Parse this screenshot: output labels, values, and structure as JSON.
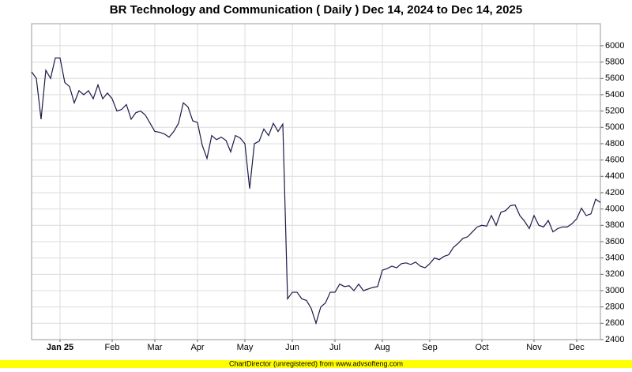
{
  "chart_data": {
    "type": "line",
    "title": "BR Technology and Communication ( Daily ) Dec 14, 2024 to Dec 14, 2025",
    "footer": "ChartDirector (unregistered) from www.advsofteng.com",
    "categories": [
      null,
      null,
      null,
      null,
      null,
      null,
      "Jan 25",
      null,
      null,
      null,
      null,
      null,
      null,
      null,
      null,
      null,
      null,
      "Feb",
      null,
      null,
      null,
      null,
      null,
      null,
      null,
      null,
      "Mar",
      null,
      null,
      null,
      null,
      null,
      null,
      null,
      null,
      "Apr",
      null,
      null,
      null,
      null,
      null,
      null,
      null,
      null,
      null,
      "May",
      null,
      null,
      null,
      null,
      null,
      null,
      null,
      null,
      null,
      "Jun",
      null,
      null,
      null,
      null,
      null,
      null,
      null,
      null,
      "Jul",
      null,
      null,
      null,
      null,
      null,
      null,
      null,
      null,
      null,
      "Aug",
      null,
      null,
      null,
      null,
      null,
      null,
      null,
      null,
      null,
      "Sep",
      null,
      null,
      null,
      null,
      null,
      null,
      null,
      null,
      null,
      null,
      "Oct",
      null,
      null,
      null,
      null,
      null,
      null,
      null,
      null,
      null,
      null,
      "Nov",
      null,
      null,
      null,
      null,
      null,
      null,
      null,
      null,
      "Dec",
      null,
      null,
      null,
      null,
      null
    ],
    "series": [
      {
        "color": "#1a1a4a",
        "values": [
          5680,
          5600,
          5100,
          5700,
          5600,
          5850,
          5850,
          5550,
          5500,
          5300,
          5450,
          5400,
          5450,
          5350,
          5520,
          5350,
          5420,
          5350,
          5200,
          5220,
          5280,
          5100,
          5180,
          5200,
          5150,
          5050,
          4950,
          4940,
          4920,
          4880,
          4950,
          5050,
          5300,
          5250,
          5080,
          5060,
          4780,
          4620,
          4900,
          4850,
          4880,
          4840,
          4700,
          4900,
          4870,
          4800,
          4250,
          4800,
          4830,
          4980,
          4900,
          5050,
          4950,
          5040,
          2900,
          2980,
          2980,
          2900,
          2880,
          2780,
          2600,
          2800,
          2850,
          2980,
          2980,
          3080,
          3050,
          3060,
          3000,
          3080,
          3000,
          3020,
          3040,
          3050,
          3250,
          3270,
          3300,
          3280,
          3330,
          3340,
          3320,
          3350,
          3300,
          3280,
          3330,
          3400,
          3380,
          3420,
          3440,
          3530,
          3580,
          3640,
          3660,
          3720,
          3780,
          3800,
          3790,
          3920,
          3800,
          3960,
          3980,
          4040,
          4050,
          3920,
          3850,
          3760,
          3920,
          3800,
          3780,
          3860,
          3720,
          3760,
          3780,
          3780,
          3820,
          3880,
          4010,
          3920,
          3940,
          4120,
          4080
        ]
      }
    ],
    "ylim": [
      2400,
      6270
    ],
    "yticks": [
      2400,
      2600,
      2800,
      3000,
      3200,
      3400,
      3600,
      3800,
      4000,
      4200,
      4400,
      4600,
      4800,
      5000,
      5200,
      5400,
      5600,
      5800,
      6000
    ],
    "grid": true
  }
}
